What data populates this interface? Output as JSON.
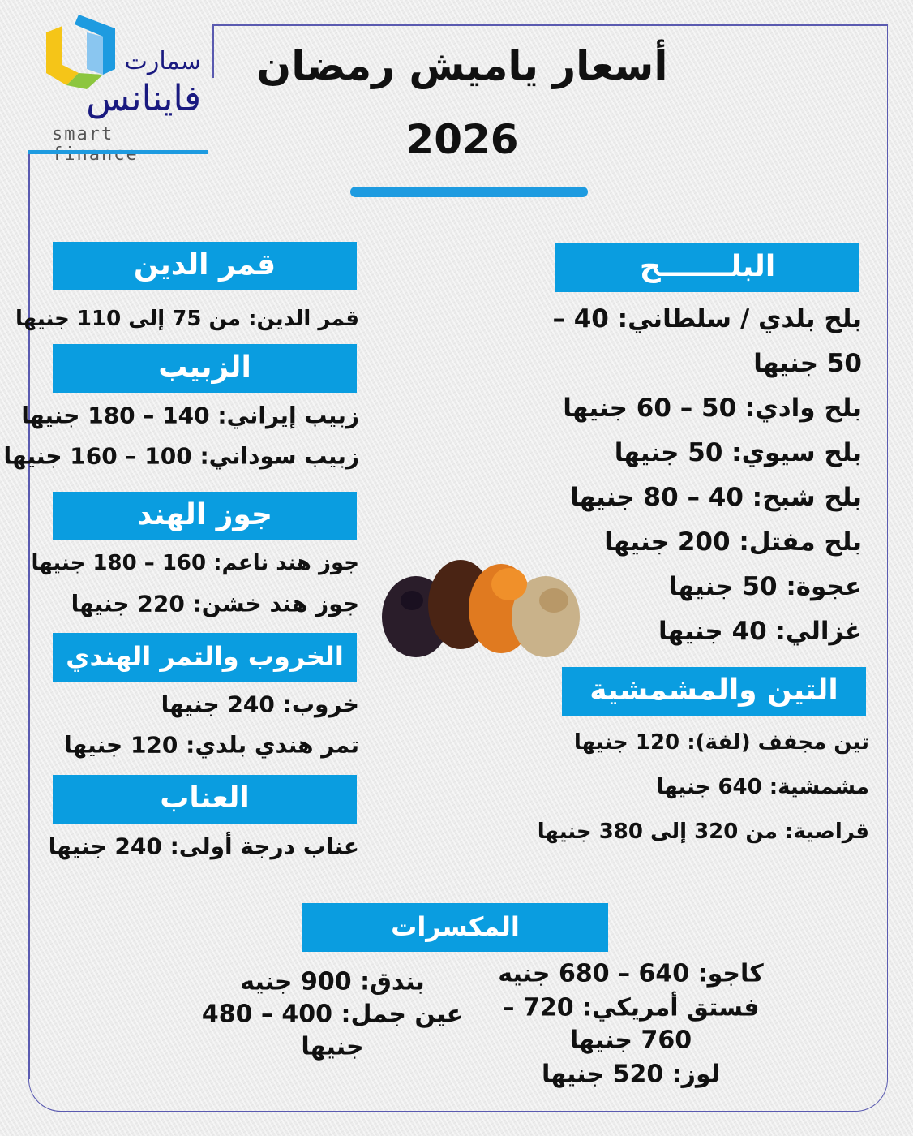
{
  "logo": {
    "arabic_top": "سمارت",
    "arabic_main": "فاينانس",
    "latin": "smart finance",
    "colors": [
      "#f5c518",
      "#1e9be0",
      "#8ac6f0",
      "#8cc63f"
    ]
  },
  "title": {
    "line1": "أسعار ياميش رمضان",
    "line2": "2026"
  },
  "accent_color": "#0a9de0",
  "sections": {
    "dates": {
      "header": "البلـــــــح",
      "items": [
        "بلح بلدي / سلطاني: 40 –",
        "50 جنيها",
        "بلح وادي: 50 – 60 جنيها",
        "بلح سيوي: 50 جنيها",
        "بلح شبح: 40 – 80 جنيها",
        "بلح مفتل: 200 جنيها",
        "عجوة: 50 جنيها",
        "غزالي: 40 جنيها"
      ]
    },
    "figs": {
      "header": "التين والمشمشية",
      "items": [
        "تين مجفف (لفة): 120 جنيها",
        "مشمشية: 640 جنيها",
        "قراصية: من 320 إلى 380 جنيها"
      ]
    },
    "qamar": {
      "header": "قمر الدين",
      "items": [
        "قمر الدين: من 75 إلى 110 جنيها"
      ]
    },
    "raisins": {
      "header": "الزبيب",
      "items": [
        "زبيب إيراني: 140 – 180 جنيها",
        "زبيب سوداني: 100 – 160 جنيها"
      ]
    },
    "coconut": {
      "header": "جوز الهند",
      "items": [
        "جوز هند ناعم: 160 – 180 جنيها",
        "جوز هند خشن: 220 جنيها"
      ]
    },
    "carob": {
      "header": "الخروب والتمر الهندي",
      "items": [
        "خروب: 240 جنيها",
        "تمر هندي بلدي: 120 جنيها"
      ]
    },
    "jujube": {
      "header": "العناب",
      "items": [
        "عناب درجة أولى: 240 جنيها"
      ]
    },
    "nuts": {
      "header": "المكسرات",
      "right": [
        "كاجو: 640 – 680 جنيه",
        "فستق أمريكي: 720 –",
        "760 جنيها",
        "لوز: 520 جنيها"
      ],
      "left": [
        "بندق: 900 جنيه",
        "عين جمل: 400 – 480",
        "جنيها"
      ]
    }
  }
}
